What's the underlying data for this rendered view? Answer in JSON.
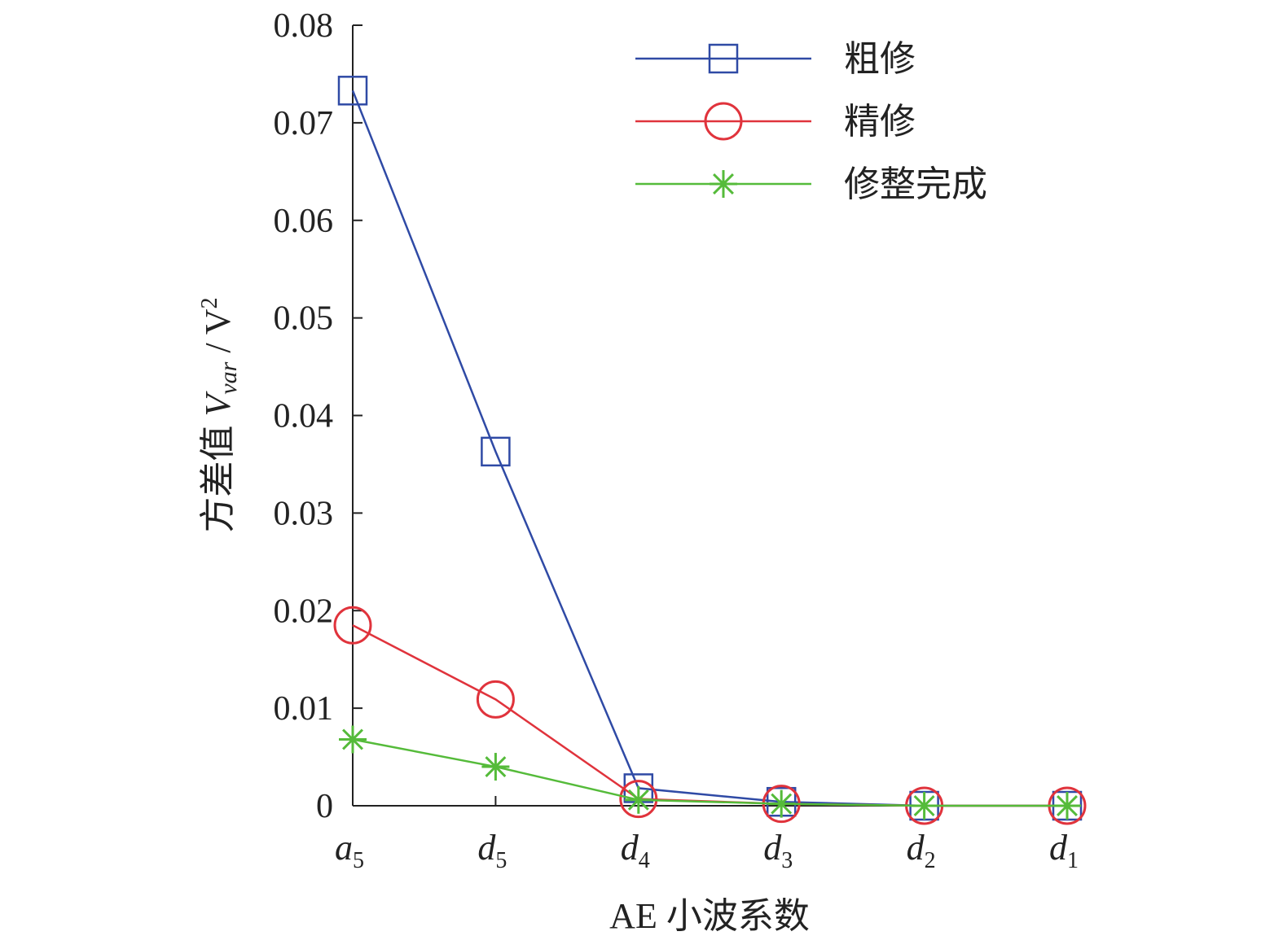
{
  "chart_data": {
    "type": "line",
    "title": "",
    "xlabel": "AE 小波系数",
    "ylabel": {
      "prefix": "方差值 ",
      "var": "V",
      "sub": "var",
      "sep": " / ",
      "unit": "V",
      "sup": "2"
    },
    "categories": [
      {
        "base": "a",
        "sub": "5"
      },
      {
        "base": "d",
        "sub": "5"
      },
      {
        "base": "d",
        "sub": "4"
      },
      {
        "base": "d",
        "sub": "3"
      },
      {
        "base": "d",
        "sub": "2"
      },
      {
        "base": "d",
        "sub": "1"
      }
    ],
    "ylim": [
      0,
      0.08
    ],
    "yticks": [
      "0",
      "0.01",
      "0.02",
      "0.03",
      "0.04",
      "0.05",
      "0.06",
      "0.07",
      "0.08"
    ],
    "legend_position": "top-right",
    "grid": false,
    "series": [
      {
        "name": "粗修",
        "marker": "square",
        "color": "#2f4aa5",
        "values": [
          0.0733,
          0.0363,
          0.0018,
          0.0004,
          0.0,
          0.0
        ]
      },
      {
        "name": "精修",
        "marker": "circle",
        "color": "#e0333c",
        "values": [
          0.0185,
          0.0109,
          0.0007,
          0.0002,
          0.0,
          0.0
        ]
      },
      {
        "name": "修整完成",
        "marker": "star",
        "color": "#55bb3a",
        "values": [
          0.0068,
          0.004,
          0.0006,
          0.0002,
          0.0,
          0.0
        ]
      }
    ]
  }
}
